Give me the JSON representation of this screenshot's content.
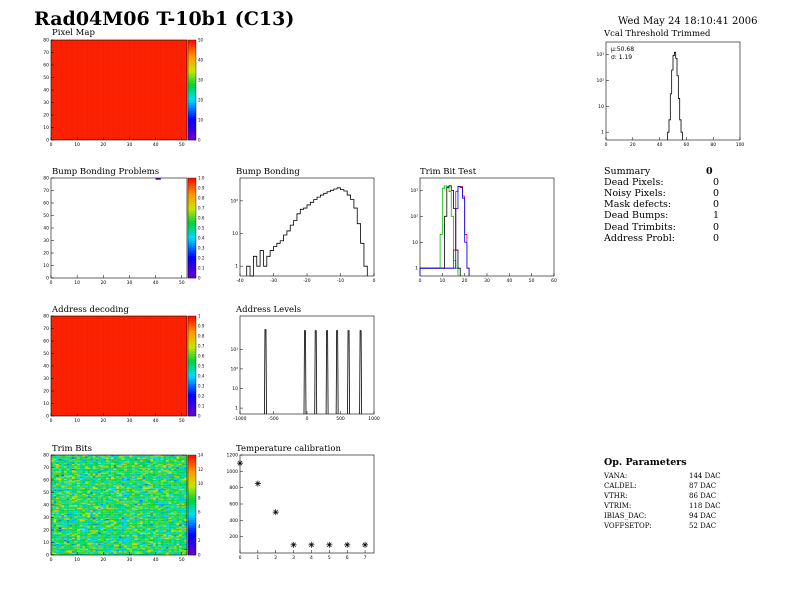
{
  "header": {
    "title": "Rad04M06 T-10b1 (C13)",
    "date": "Wed May 24 18:10:41 2006"
  },
  "colors": {
    "hist_line": "#000000",
    "trim_green": "#00c000",
    "trim_red": "#ff0000",
    "trim_blue": "#0000ff",
    "map_red": "#ff2200"
  },
  "summary": {
    "title": "Summary",
    "value": "0",
    "items": [
      {
        "label": "Dead Pixels:",
        "value": "0"
      },
      {
        "label": "Noisy Pixels:",
        "value": "0"
      },
      {
        "label": "Mask defects:",
        "value": "0"
      },
      {
        "label": "Dead Bumps:",
        "value": "1"
      },
      {
        "label": "Dead Trimbits:",
        "value": "0"
      },
      {
        "label": "Address Probl:",
        "value": "0"
      }
    ]
  },
  "op_params": {
    "title": "Op. Parameters",
    "items": [
      {
        "label": "VANA:",
        "value": "144 DAC"
      },
      {
        "label": "CALDEL:",
        "value": "87 DAC"
      },
      {
        "label": "VTHR:",
        "value": "86 DAC"
      },
      {
        "label": "VTRIM:",
        "value": "118 DAC"
      },
      {
        "label": "IBIAS_DAC:",
        "value": "94 DAC"
      },
      {
        "label": "VOFFSETOP:",
        "value": "52 DAC"
      }
    ]
  },
  "chart_data": [
    {
      "id": "pixel_map",
      "type": "heatmap",
      "title": "Pixel Map",
      "xlim": [
        0,
        52
      ],
      "ylim": [
        0,
        80
      ],
      "x_ticks": [
        "0",
        "10",
        "20",
        "30",
        "40",
        "50"
      ],
      "y_ticks": [
        "0",
        "10",
        "20",
        "30",
        "40",
        "50",
        "60",
        "70",
        "80"
      ],
      "colorbar_ticks": [
        "0",
        "10",
        "20",
        "30",
        "40",
        "50"
      ],
      "fill": "uniform",
      "value": 50
    },
    {
      "id": "vcal_threshold",
      "type": "line",
      "title": "Vcal Threshold Trimmed",
      "xlim": [
        0,
        100
      ],
      "log_y": true,
      "ylim": [
        0.5,
        3000
      ],
      "x_ticks": [
        "0",
        "20",
        "40",
        "60",
        "80",
        "100"
      ],
      "y_ticks": [
        "1",
        "10",
        "10²",
        "10³"
      ],
      "stats": [
        "μ:50.68",
        "σ: 1.19"
      ],
      "x": [
        46,
        47,
        48,
        49,
        50,
        51,
        52,
        53,
        54,
        55,
        56
      ],
      "values": [
        1,
        3,
        30,
        250,
        900,
        1200,
        700,
        150,
        20,
        3,
        1
      ]
    },
    {
      "id": "bump_problems",
      "type": "heatmap",
      "title": "Bump Bonding Problems",
      "xlim": [
        0,
        52
      ],
      "ylim": [
        0,
        80
      ],
      "x_ticks": [
        "0",
        "10",
        "20",
        "30",
        "40",
        "50"
      ],
      "y_ticks": [
        "0",
        "10",
        "20",
        "30",
        "40",
        "50",
        "60",
        "70",
        "80"
      ],
      "colorbar_ticks": [
        "0",
        "0.1",
        "0.2",
        "0.3",
        "0.4",
        "0.5",
        "0.6",
        "0.7",
        "0.8",
        "0.9",
        "1.0"
      ],
      "fill": "empty",
      "hot_cells": [
        [
          40,
          79
        ]
      ]
    },
    {
      "id": "bump_bonding",
      "type": "line",
      "title": "Bump Bonding",
      "xlim": [
        -40,
        0
      ],
      "log_y": true,
      "ylim": [
        0.5,
        500
      ],
      "x_ticks": [
        "-40",
        "-30",
        "-20",
        "-10",
        "0"
      ],
      "y_ticks": [
        "1",
        "10",
        "10²"
      ],
      "x": [
        -38,
        -37,
        -36,
        -35,
        -34,
        -33,
        -32,
        -31,
        -30,
        -29,
        -28,
        -27,
        -26,
        -25,
        -24,
        -23,
        -22,
        -21,
        -20,
        -19,
        -18,
        -17,
        -16,
        -15,
        -14,
        -13,
        -12,
        -11,
        -10,
        -9,
        -8,
        -7,
        -6,
        -5,
        -4,
        -3
      ],
      "values": [
        1,
        0,
        2,
        1,
        3,
        1,
        2,
        3,
        4,
        5,
        6,
        9,
        12,
        18,
        25,
        40,
        55,
        60,
        75,
        90,
        110,
        130,
        150,
        170,
        190,
        210,
        230,
        250,
        220,
        200,
        150,
        110,
        60,
        20,
        5,
        1
      ]
    },
    {
      "id": "trim_bit_test",
      "type": "line",
      "title": "Trim Bit Test",
      "xlim": [
        0,
        60
      ],
      "log_y": true,
      "ylim": [
        0.5,
        3000
      ],
      "x_ticks": [
        "0",
        "10",
        "20",
        "30",
        "40",
        "50",
        "60"
      ],
      "y_ticks": [
        "1",
        "10",
        "10²",
        "10³"
      ],
      "series": [
        {
          "color": "green",
          "x": [
            0,
            8,
            9,
            10,
            11,
            12,
            13,
            14,
            15,
            16
          ],
          "values": [
            1,
            1,
            20,
            1200,
            1500,
            1400,
            900,
            100,
            2,
            1
          ]
        },
        {
          "color": "black",
          "x": [
            0,
            10,
            11,
            12,
            13,
            14,
            15,
            16,
            17
          ],
          "values": [
            1,
            1,
            100,
            1300,
            1500,
            1000,
            200,
            5,
            1
          ]
        },
        {
          "color": "red",
          "x": [
            0,
            14,
            15,
            16,
            17,
            18,
            19,
            20,
            21
          ],
          "values": [
            1,
            1,
            5,
            900,
            1400,
            1400,
            600,
            20,
            1
          ]
        },
        {
          "color": "blue",
          "x": [
            0,
            15,
            16,
            17,
            18,
            19,
            20,
            21
          ],
          "values": [
            1,
            1,
            200,
            1400,
            1300,
            500,
            10,
            1
          ]
        }
      ]
    },
    {
      "id": "address_decoding",
      "type": "heatmap",
      "title": "Address decoding",
      "xlim": [
        0,
        52
      ],
      "ylim": [
        0,
        80
      ],
      "x_ticks": [
        "0",
        "10",
        "20",
        "30",
        "40",
        "50"
      ],
      "y_ticks": [
        "0",
        "10",
        "20",
        "30",
        "40",
        "50",
        "60",
        "70",
        "80"
      ],
      "colorbar_ticks": [
        "0",
        "0.1",
        "0.2",
        "0.3",
        "0.4",
        "0.5",
        "0.6",
        "0.7",
        "0.8",
        "0.9",
        "1"
      ],
      "fill": "uniform",
      "value": 1
    },
    {
      "id": "address_levels",
      "type": "line",
      "title": "Address Levels",
      "xlim": [
        -1000,
        1000
      ],
      "log_y": true,
      "ylim": [
        0.5,
        50000
      ],
      "x_ticks": [
        "-1000",
        "-500",
        "0",
        "500",
        "1000"
      ],
      "y_ticks": [
        "1",
        "10",
        "10²",
        "10³"
      ],
      "peaks_x": [
        -620,
        -30,
        130,
        300,
        450,
        620,
        800
      ],
      "peaks_y": [
        10000,
        9000,
        9000,
        9000,
        9000,
        9000,
        9000
      ]
    },
    {
      "id": "trim_bits",
      "type": "heatmap",
      "title": "Trim Bits",
      "xlim": [
        0,
        52
      ],
      "ylim": [
        0,
        80
      ],
      "x_ticks": [
        "0",
        "10",
        "20",
        "30",
        "40",
        "50"
      ],
      "y_ticks": [
        "0",
        "10",
        "20",
        "30",
        "40",
        "50",
        "60",
        "70",
        "80"
      ],
      "colorbar_ticks": [
        "0",
        "2",
        "4",
        "6",
        "8",
        "10",
        "12",
        "14"
      ],
      "fill": "noise",
      "mean": 8,
      "spread": 3,
      "zmax": 15
    },
    {
      "id": "temperature_calibration",
      "type": "scatter",
      "title": "Temperature calibration",
      "xlim": [
        0,
        7.5
      ],
      "ylim": [
        0,
        1200
      ],
      "x_ticks": [
        "0",
        "1",
        "2",
        "3",
        "4",
        "5",
        "6",
        "7"
      ],
      "y_ticks": [
        "200",
        "400",
        "600",
        "800",
        "1000",
        "1200"
      ],
      "x": [
        0,
        1,
        2,
        3,
        4,
        5,
        6,
        7
      ],
      "values": [
        1100,
        850,
        500,
        100,
        100,
        100,
        100,
        100
      ]
    }
  ]
}
